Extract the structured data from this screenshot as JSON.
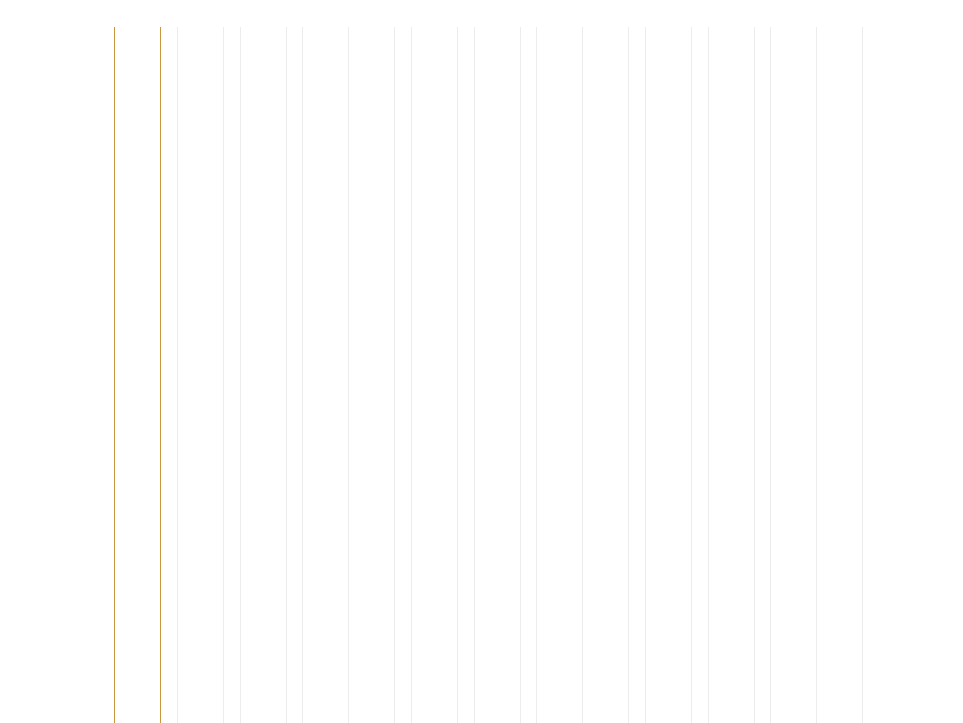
{
  "colors": {
    "background": "#ffffff",
    "accent_line": "#c8963e",
    "grid_line": "#ececec"
  },
  "content": {
    "accent_line_count": 2,
    "grid_line_count": 22
  }
}
